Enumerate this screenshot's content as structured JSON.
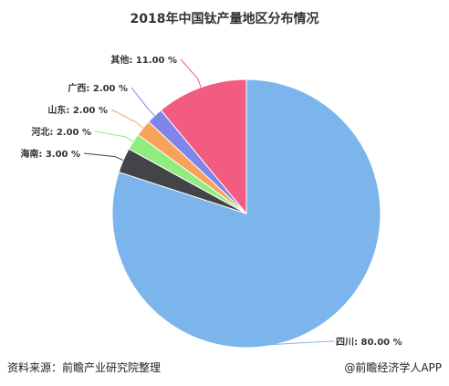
{
  "chart_data": {
    "type": "pie",
    "title": "2018年中国钛产量地区分布情况",
    "slices": [
      {
        "name": "四川",
        "value": 80.0,
        "label": "四川: 80.00 %",
        "color": "#7cb5ec"
      },
      {
        "name": "海南",
        "value": 3.0,
        "label": "海南: 3.00 %",
        "color": "#434348"
      },
      {
        "name": "河北",
        "value": 2.0,
        "label": "河北: 2.00 %",
        "color": "#90ed7d"
      },
      {
        "name": "山东",
        "value": 2.0,
        "label": "山东: 2.00 %",
        "color": "#f7a35c"
      },
      {
        "name": "广西",
        "value": 2.0,
        "label": "广西: 2.00 %",
        "color": "#8085e9"
      },
      {
        "name": "其他",
        "value": 11.0,
        "label": "其他: 11.00 %",
        "color": "#f15c80"
      }
    ]
  },
  "footer": {
    "source": "资料来源：前瞻产业研究院整理",
    "credit": "@前瞻经济学人APP"
  }
}
